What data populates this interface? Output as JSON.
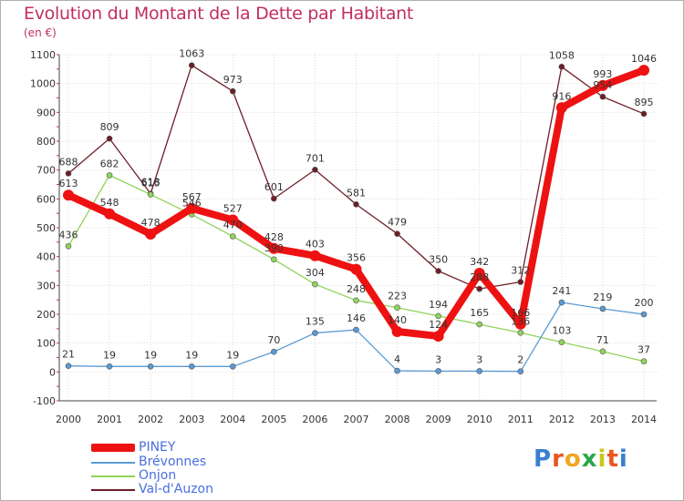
{
  "title": "Evolution du Montant de la Dette par Habitant",
  "unit": "(en €)",
  "logo": {
    "letters": [
      "P",
      "r",
      "o",
      "x",
      "i",
      "t",
      "i"
    ],
    "colors": [
      "#3a7fd0",
      "#e8571e",
      "#f0a61e",
      "#2aa84a",
      "#c8c81e",
      "#e8571e",
      "#3a7fd0"
    ]
  },
  "chart_data": {
    "type": "line",
    "x": [
      "2000",
      "2001",
      "2002",
      "2003",
      "2004",
      "2005",
      "2006",
      "2007",
      "2008",
      "2009",
      "2010",
      "2011",
      "2012",
      "2013",
      "2014"
    ],
    "ylim": [
      -100,
      1100
    ],
    "yticks": [
      "-100",
      "0",
      "100",
      "200",
      "300",
      "400",
      "500",
      "600",
      "700",
      "800",
      "900",
      "1000",
      "1100"
    ],
    "grid": true,
    "legend_position": "bottom-left",
    "series": [
      {
        "name": "Val-d'Auzon",
        "color": "#6e1e28",
        "width": 1.3,
        "values": [
          688,
          809,
          618,
          1063,
          973,
          601,
          701,
          581,
          479,
          350,
          288,
          312,
          1058,
          954,
          895
        ],
        "labels": [
          "688",
          "809",
          "618",
          "1063",
          "973",
          "601",
          "701",
          "581",
          "479",
          "350",
          "288",
          "312",
          "1058",
          "954",
          "895"
        ]
      },
      {
        "name": "Onjon",
        "color": "#8fd45a",
        "width": 1.3,
        "values": [
          436,
          682,
          615,
          546,
          470,
          390,
          304,
          248,
          223,
          194,
          165,
          136,
          103,
          71,
          37
        ],
        "labels": [
          "436",
          "682",
          "615",
          "546",
          "470",
          "390",
          "304",
          "248",
          "223",
          "194",
          "165",
          "136",
          "103",
          "71",
          "37"
        ]
      },
      {
        "name": "Brévonnes",
        "color": "#5a9ad4",
        "width": 1.3,
        "values": [
          21,
          19,
          19,
          19,
          19,
          70,
          135,
          146,
          4,
          3,
          3,
          2,
          241,
          219,
          200
        ],
        "labels": [
          "21",
          "19",
          "19",
          "19",
          "19",
          "70",
          "135",
          "146",
          "4",
          "3",
          "3",
          "2",
          "241",
          "219",
          "200"
        ]
      },
      {
        "name": "PINEY",
        "color": "#ee1111",
        "width": 8,
        "values": [
          613,
          548,
          478,
          567,
          527,
          428,
          403,
          356,
          140,
          124,
          342,
          166,
          916,
          993,
          1046
        ],
        "labels": [
          "613",
          "548",
          "478",
          "567",
          "527",
          "428",
          "403",
          "356",
          "140",
          "124",
          "342",
          "166",
          "916",
          "993",
          "1046"
        ]
      }
    ],
    "legend": [
      {
        "name": "PINEY",
        "color": "#ee1111",
        "thick": true
      },
      {
        "name": "Brévonnes",
        "color": "#5a9ad4",
        "thick": false
      },
      {
        "name": "Onjon",
        "color": "#8fd45a",
        "thick": false
      },
      {
        "name": "Val-d'Auzon",
        "color": "#6e1e28",
        "thick": false
      }
    ]
  }
}
